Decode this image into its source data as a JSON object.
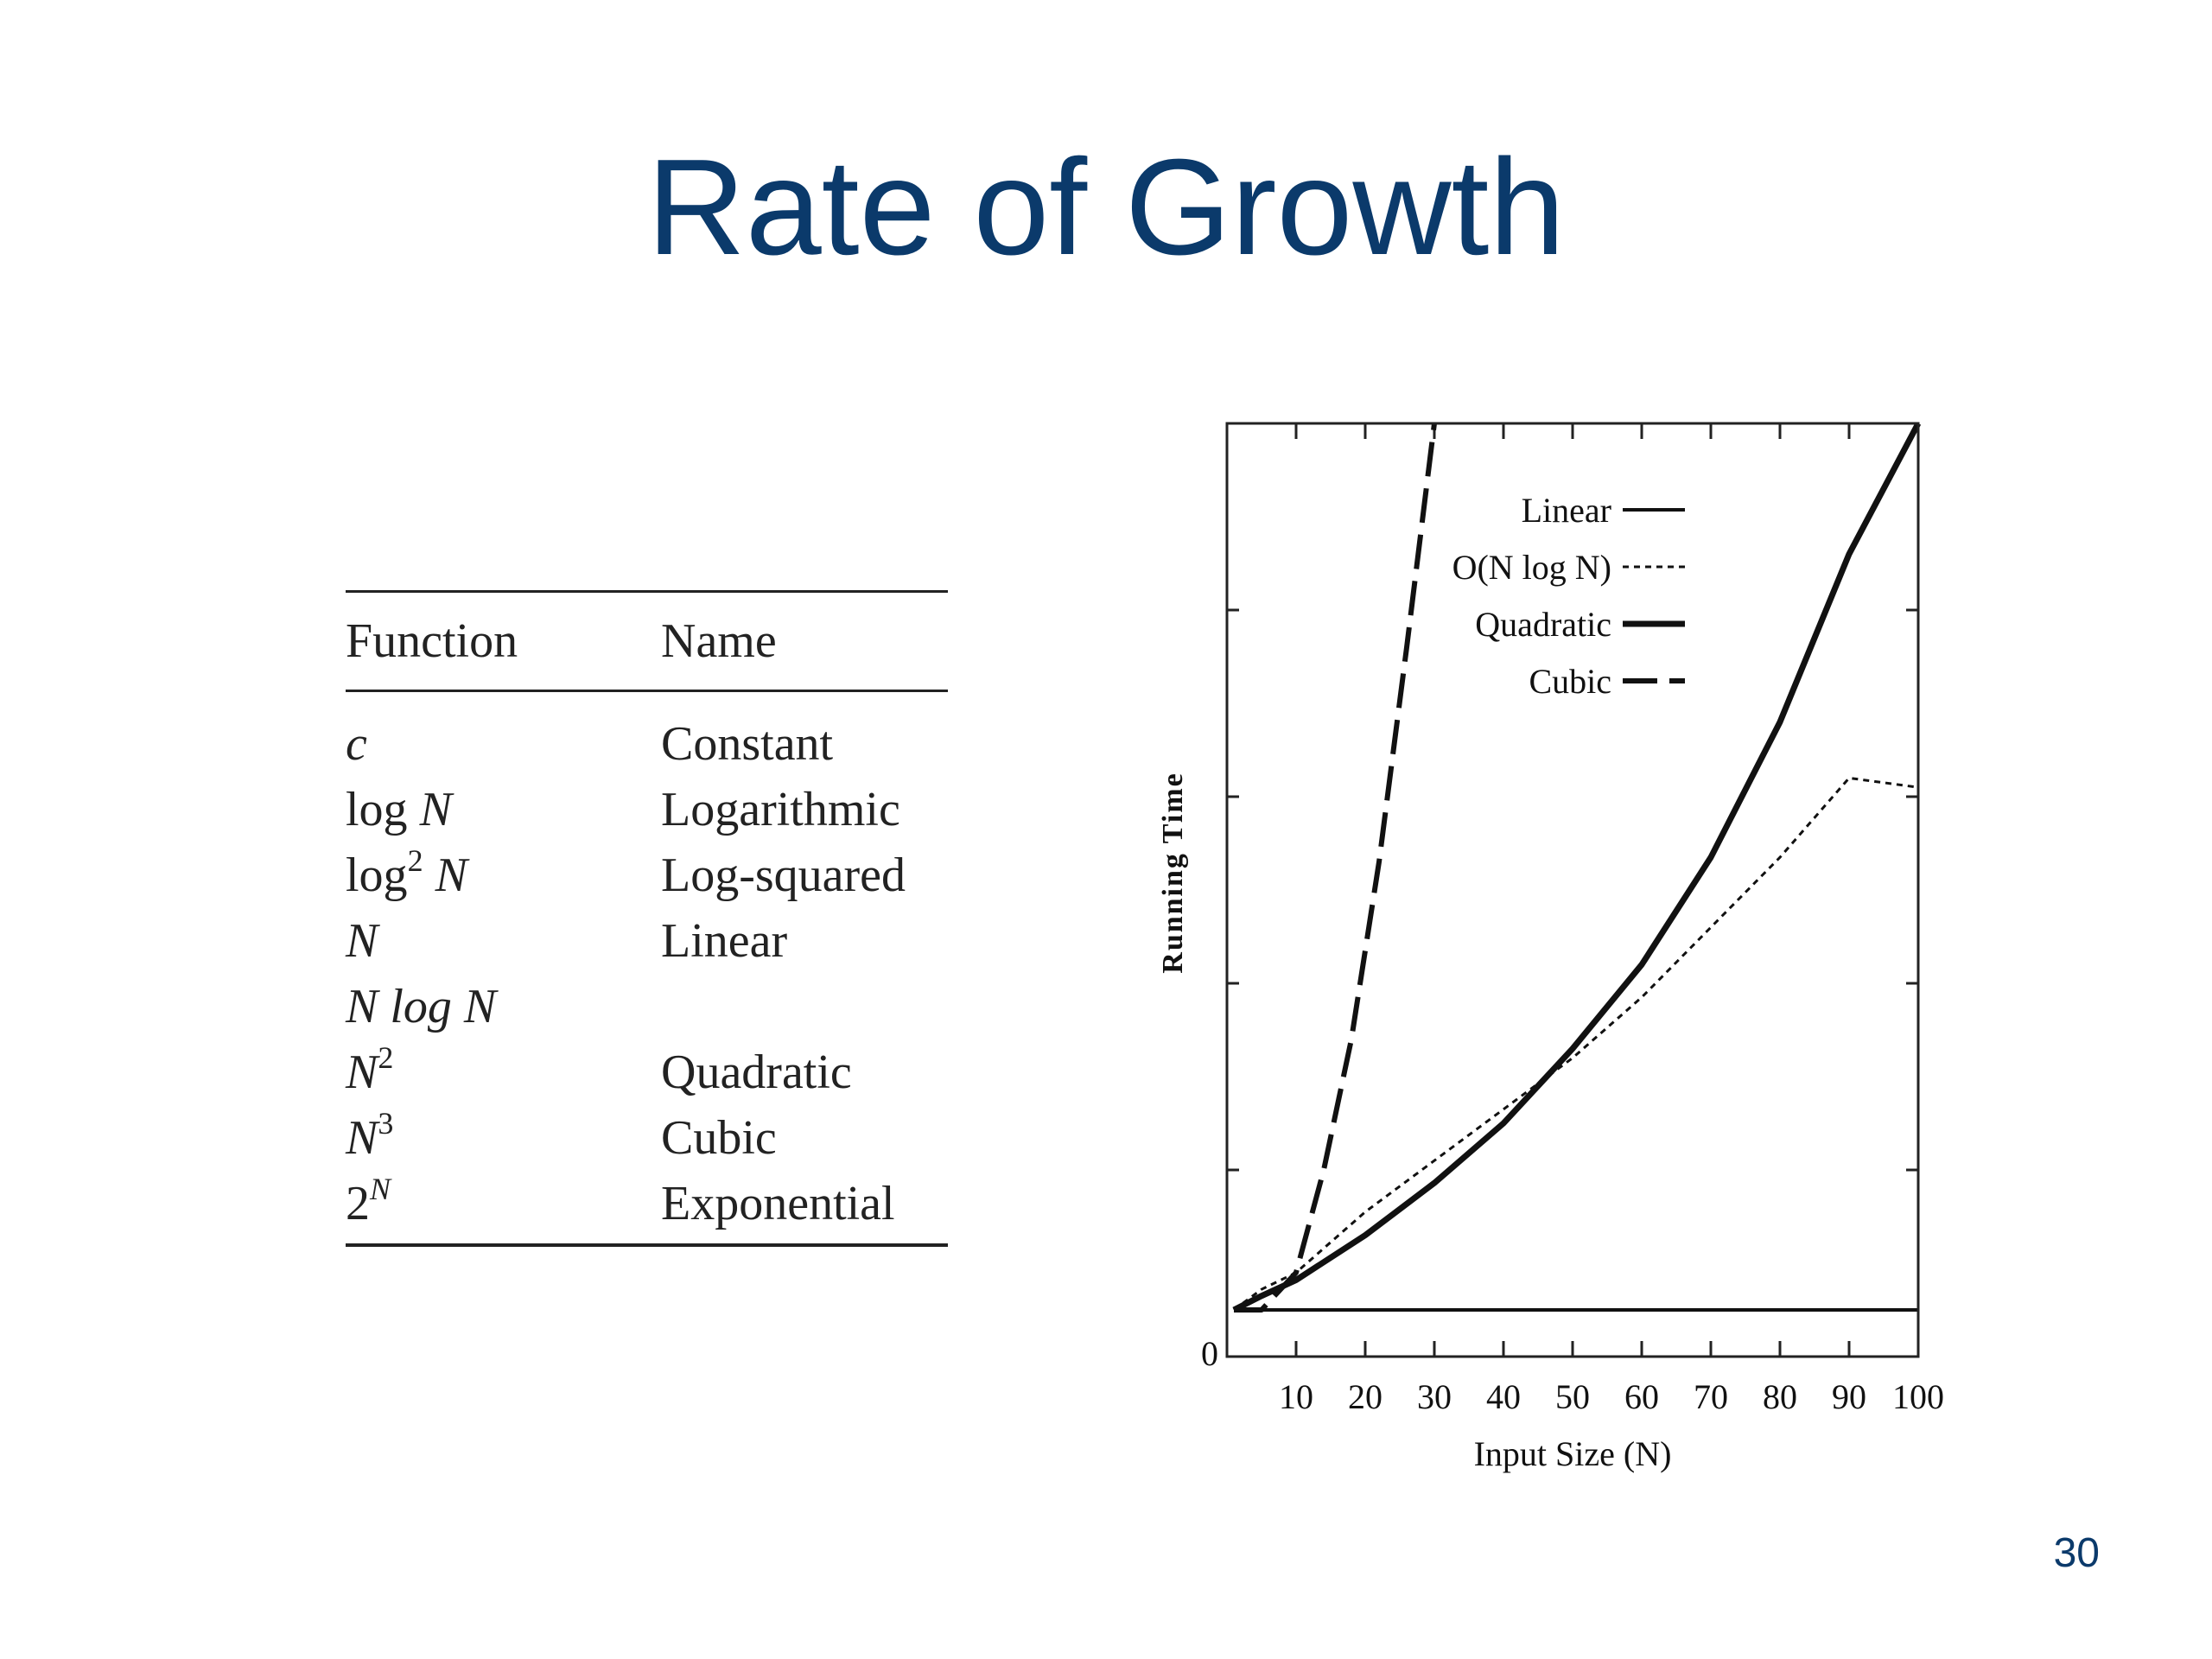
{
  "slide": {
    "title": "Rate of Growth",
    "page_number": "30"
  },
  "table": {
    "headers": {
      "function": "Function",
      "name": "Name"
    },
    "rows": [
      {
        "base": "c",
        "sup": "",
        "tail": "",
        "name": "Constant"
      },
      {
        "base": "log ",
        "sup": "",
        "tail": "N",
        "name": "Logarithmic"
      },
      {
        "base": "log",
        "sup": "2",
        "tail": " N",
        "name": "Log-squared"
      },
      {
        "base": "N",
        "sup": "",
        "tail": "",
        "name": "Linear"
      },
      {
        "base": "N log N",
        "sup": "",
        "tail": "",
        "name": ""
      },
      {
        "base": "N",
        "sup": "2",
        "tail": "",
        "name": "Quadratic"
      },
      {
        "base": "N",
        "sup": "3",
        "tail": "",
        "name": "Cubic"
      },
      {
        "base": "2",
        "sup": "N",
        "tail": "",
        "name": "Exponential"
      }
    ]
  },
  "chart_data": {
    "type": "line",
    "title": "",
    "xlabel": "Input Size (N)",
    "ylabel": "Running Time",
    "xlim": [
      0,
      100
    ],
    "ylim": [
      0,
      10000
    ],
    "x_ticks": [
      10,
      20,
      30,
      40,
      50,
      60,
      70,
      80,
      90,
      100
    ],
    "y_tick_labels": [
      "0"
    ],
    "grid": false,
    "legend_position": "top-right",
    "series": [
      {
        "name": "Linear",
        "style": "solid-thin",
        "x": [
          1,
          100
        ],
        "y": [
          500,
          500
        ]
      },
      {
        "name": "O(N log N)",
        "style": "dotted",
        "x": [
          1,
          5,
          10,
          20,
          30,
          40,
          50,
          60,
          70,
          80,
          90,
          100
        ],
        "y": [
          500,
          720,
          900,
          1550,
          2100,
          2650,
          3200,
          3850,
          4600,
          5350,
          6200,
          6100
        ]
      },
      {
        "name": "Quadratic",
        "style": "solid-thick",
        "x": [
          1,
          5,
          10,
          20,
          30,
          40,
          50,
          60,
          70,
          80,
          90,
          100
        ],
        "y": [
          500,
          650,
          820,
          1300,
          1860,
          2500,
          3300,
          4200,
          5350,
          6800,
          8600,
          10000
        ]
      },
      {
        "name": "Cubic",
        "style": "dashed-thick",
        "x": [
          1,
          5,
          10,
          14,
          18,
          22,
          26,
          28,
          30
        ],
        "y": [
          500,
          500,
          900,
          2000,
          3400,
          5300,
          7600,
          8800,
          10000
        ]
      }
    ]
  }
}
